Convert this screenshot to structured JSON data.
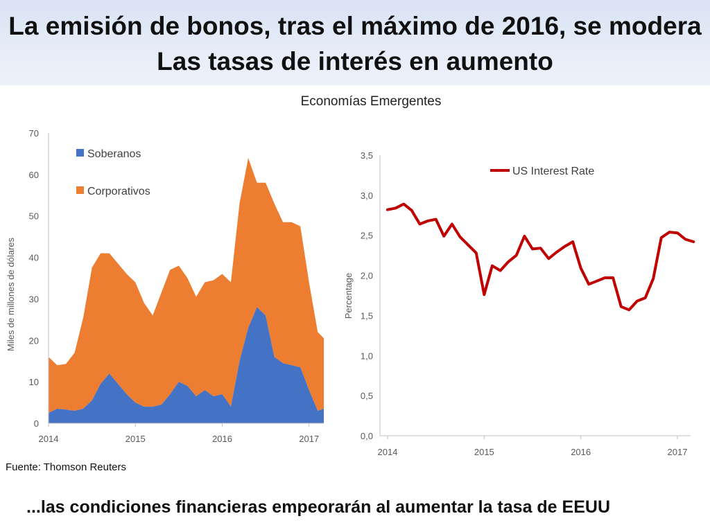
{
  "header": {
    "title_line1": "La emisión de bonos, tras el máximo de 2016, se modera",
    "title_line2": "Las tasas de interés en aumento"
  },
  "subtitle": "Economías Emergentes",
  "source": "Fuente: Thomson Reuters",
  "footer": "...las condiciones financieras empeorarán al aumentar la tasa de EEUU",
  "colors": {
    "soberanos": "#4472c4",
    "corporativos": "#ed7d31",
    "us_rate": "#c00000"
  },
  "chart_data": [
    {
      "type": "area",
      "stacked": true,
      "title": "",
      "ylabel": "Miles de millones de dólares",
      "xlabel": "",
      "ylim": [
        0,
        70
      ],
      "yticks": [
        "0",
        "10",
        "20",
        "30",
        "40",
        "50",
        "60",
        "70"
      ],
      "xticks": [
        {
          "label": "2014",
          "x": 2014.0
        },
        {
          "label": "2015",
          "x": 2015.0
        },
        {
          "label": "2016",
          "x": 2016.0
        },
        {
          "label": "2017",
          "x": 2017.0
        }
      ],
      "legend_position": "top-left",
      "x": [
        2014.0,
        2014.1,
        2014.2,
        2014.3,
        2014.4,
        2014.5,
        2014.6,
        2014.7,
        2014.8,
        2014.9,
        2015.0,
        2015.1,
        2015.2,
        2015.3,
        2015.4,
        2015.5,
        2015.6,
        2015.7,
        2015.8,
        2015.9,
        2016.0,
        2016.1,
        2016.2,
        2016.3,
        2016.4,
        2016.5,
        2016.6,
        2016.7,
        2016.8,
        2016.9,
        2017.0,
        2017.1,
        2017.17
      ],
      "series": [
        {
          "name": "Soberanos",
          "values": [
            2.5,
            3.5,
            3.3,
            3.0,
            3.5,
            5.5,
            9.5,
            12.0,
            9.5,
            7.0,
            5.0,
            4.0,
            4.0,
            4.5,
            7.0,
            10.0,
            9.0,
            6.5,
            8.0,
            6.5,
            7.0,
            4.0,
            15.0,
            23.0,
            28.0,
            26.0,
            16.0,
            14.5,
            14.0,
            13.5,
            8.0,
            3.0,
            3.5
          ]
        },
        {
          "name": "Corporativos",
          "values": [
            13.5,
            10.5,
            11.0,
            14.0,
            22.0,
            32.0,
            31.5,
            29.0,
            29.0,
            29.0,
            29.0,
            25.0,
            22.0,
            27.0,
            30.0,
            28.0,
            26.0,
            24.0,
            26.0,
            28.0,
            29.0,
            30.0,
            38.0,
            41.0,
            30.0,
            32.0,
            37.0,
            34.0,
            34.5,
            34.0,
            26.0,
            19.0,
            17.0
          ]
        }
      ]
    },
    {
      "type": "line",
      "title": "",
      "ylabel": "Percentage",
      "xlabel": "",
      "ylim": [
        0,
        3.5
      ],
      "yticks": [
        "0,0",
        "0,5",
        "1,0",
        "1,5",
        "2,0",
        "2,5",
        "3,0",
        "3,5"
      ],
      "xticks": [
        {
          "label": "2014",
          "x": 2014.0
        },
        {
          "label": "2015",
          "x": 2015.0
        },
        {
          "label": "2016",
          "x": 2016.0
        },
        {
          "label": "2017",
          "x": 2017.0
        }
      ],
      "legend_position": "top-right",
      "x": [
        2014.0,
        2014.083,
        2014.167,
        2014.25,
        2014.333,
        2014.417,
        2014.5,
        2014.583,
        2014.667,
        2014.75,
        2014.833,
        2014.917,
        2015.0,
        2015.083,
        2015.167,
        2015.25,
        2015.333,
        2015.417,
        2015.5,
        2015.583,
        2015.667,
        2015.75,
        2015.833,
        2015.917,
        2016.0,
        2016.083,
        2016.167,
        2016.25,
        2016.333,
        2016.417,
        2016.5,
        2016.583,
        2016.667,
        2016.75,
        2016.833,
        2016.917,
        2017.0,
        2017.083,
        2017.167
      ],
      "series": [
        {
          "name": "US Interest Rate",
          "values": [
            2.82,
            2.84,
            2.89,
            2.81,
            2.64,
            2.68,
            2.7,
            2.49,
            2.64,
            2.48,
            2.38,
            2.28,
            1.76,
            2.12,
            2.06,
            2.17,
            2.25,
            2.49,
            2.33,
            2.34,
            2.21,
            2.29,
            2.36,
            2.42,
            2.09,
            1.89,
            1.93,
            1.97,
            1.97,
            1.61,
            1.57,
            1.68,
            1.72,
            1.96,
            2.47,
            2.54,
            2.53,
            2.45,
            2.42
          ]
        }
      ]
    }
  ]
}
